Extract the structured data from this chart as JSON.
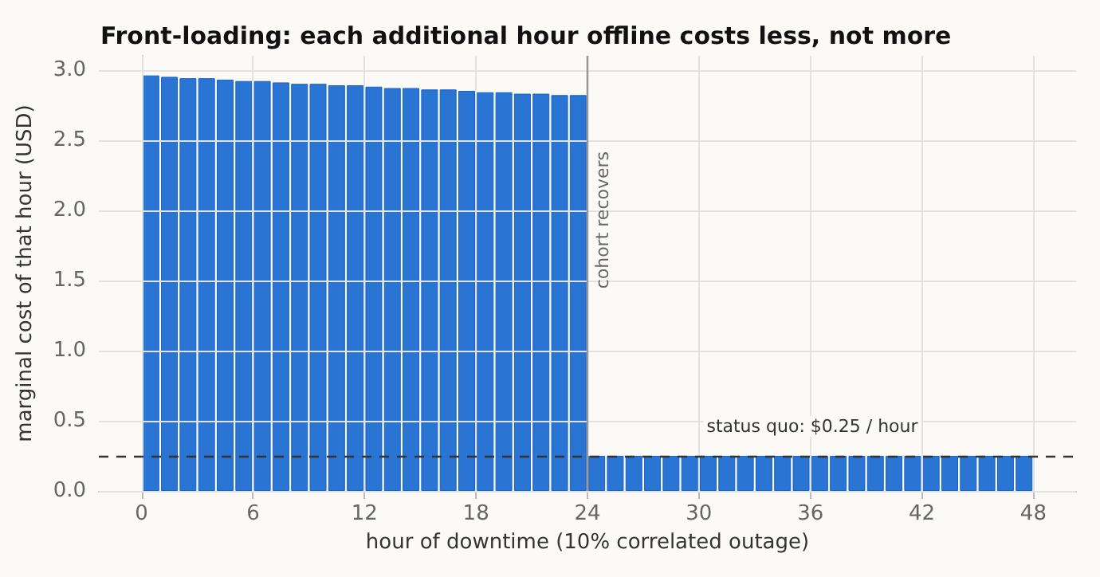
{
  "chart_data": {
    "type": "bar",
    "title": "Front-loading: each additional hour offline costs less, not more",
    "xlabel": "hour of downtime (10% correlated outage)",
    "ylabel": "marginal cost of that hour (USD)",
    "x": [
      0.5,
      1.5,
      2.5,
      3.5,
      4.5,
      5.5,
      6.5,
      7.5,
      8.5,
      9.5,
      10.5,
      11.5,
      12.5,
      13.5,
      14.5,
      15.5,
      16.5,
      17.5,
      18.5,
      19.5,
      20.5,
      21.5,
      22.5,
      23.5,
      24.5,
      25.5,
      26.5,
      27.5,
      28.5,
      29.5,
      30.5,
      31.5,
      32.5,
      33.5,
      34.5,
      35.5,
      36.5,
      37.5,
      38.5,
      39.5,
      40.5,
      41.5,
      42.5,
      43.5,
      44.5,
      45.5,
      46.5,
      47.5
    ],
    "values": [
      2.96,
      2.95,
      2.94,
      2.94,
      2.93,
      2.92,
      2.92,
      2.91,
      2.9,
      2.9,
      2.89,
      2.89,
      2.88,
      2.87,
      2.87,
      2.86,
      2.86,
      2.85,
      2.84,
      2.84,
      2.83,
      2.83,
      2.82,
      2.82,
      0.25,
      0.25,
      0.25,
      0.25,
      0.25,
      0.25,
      0.25,
      0.25,
      0.25,
      0.25,
      0.25,
      0.25,
      0.25,
      0.25,
      0.25,
      0.25,
      0.25,
      0.25,
      0.25,
      0.25,
      0.25,
      0.25,
      0.25,
      0.25
    ],
    "color": "#2a75d3",
    "xlim": [
      -2.3,
      50.3
    ],
    "xticks": [
      0,
      6,
      12,
      18,
      24,
      30,
      36,
      42,
      48
    ],
    "ylim": [
      0,
      3.1
    ],
    "yticks": [
      {
        "value": 0,
        "label": "0.0"
      },
      {
        "value": 0.5,
        "label": "0.5"
      },
      {
        "value": 1,
        "label": "1.0"
      },
      {
        "value": 1.5,
        "label": "1.5"
      },
      {
        "value": 2,
        "label": "2.0"
      },
      {
        "value": 2.5,
        "label": "2.5"
      },
      {
        "value": 3,
        "label": "3.0"
      }
    ],
    "grid": true,
    "ref_lines": [
      {
        "axis": "y",
        "value": 0.25,
        "label": "status quo: $0.25 / hour",
        "color": "#333333",
        "line_style": "dashed"
      },
      {
        "axis": "x",
        "value": 24,
        "label": "cohort recovers",
        "color": "#999999",
        "line_style": "solid"
      }
    ]
  }
}
